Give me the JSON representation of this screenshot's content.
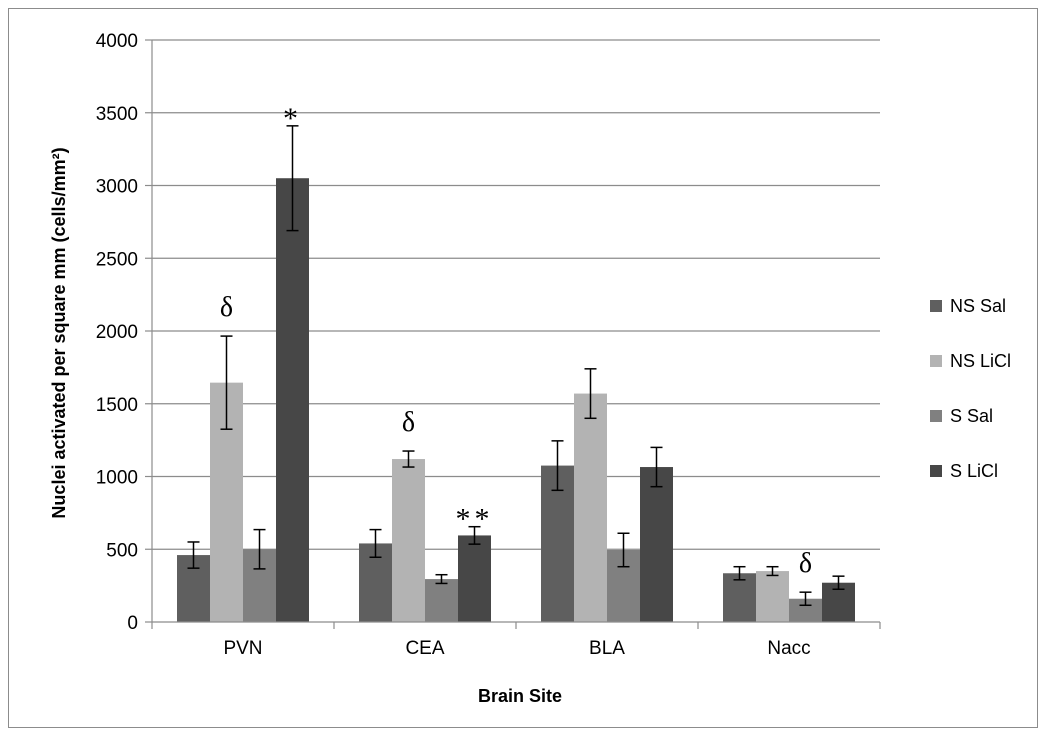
{
  "chart_data": {
    "type": "bar",
    "categories": [
      "PVN",
      "CEA",
      "BLA",
      "Nacc"
    ],
    "series": [
      {
        "name": "NS Sal",
        "color": "#5f5f5f",
        "values": [
          460,
          540,
          1075,
          335
        ],
        "errors": [
          90,
          95,
          170,
          45
        ]
      },
      {
        "name": "NS LiCl",
        "color": "#b3b3b3",
        "values": [
          1645,
          1120,
          1570,
          350
        ],
        "errors": [
          320,
          55,
          170,
          30
        ]
      },
      {
        "name": "S Sal",
        "color": "#808080",
        "values": [
          500,
          295,
          495,
          160
        ],
        "errors": [
          135,
          30,
          115,
          45
        ]
      },
      {
        "name": "S LiCl",
        "color": "#474747",
        "values": [
          3050,
          595,
          1065,
          270
        ],
        "errors": [
          360,
          60,
          135,
          45
        ]
      }
    ],
    "annotations": [
      {
        "text": "δ",
        "category": "PVN",
        "series": "NS LiCl"
      },
      {
        "text": "*",
        "category": "PVN",
        "series": "S LiCl"
      },
      {
        "text": "δ",
        "category": "CEA",
        "series": "NS LiCl"
      },
      {
        "text": "**",
        "category": "CEA",
        "series": "S LiCl"
      },
      {
        "text": "δ",
        "category": "Nacc",
        "series": "S Sal"
      }
    ],
    "xlabel": "Brain Site",
    "ylabel": "Nuclei activated per square mm (cells/mm²)",
    "ylim": [
      0,
      4000
    ],
    "yticks": [
      0,
      500,
      1000,
      1500,
      2000,
      2500,
      3000,
      3500,
      4000
    ],
    "grid": true,
    "legend_position": "right"
  }
}
